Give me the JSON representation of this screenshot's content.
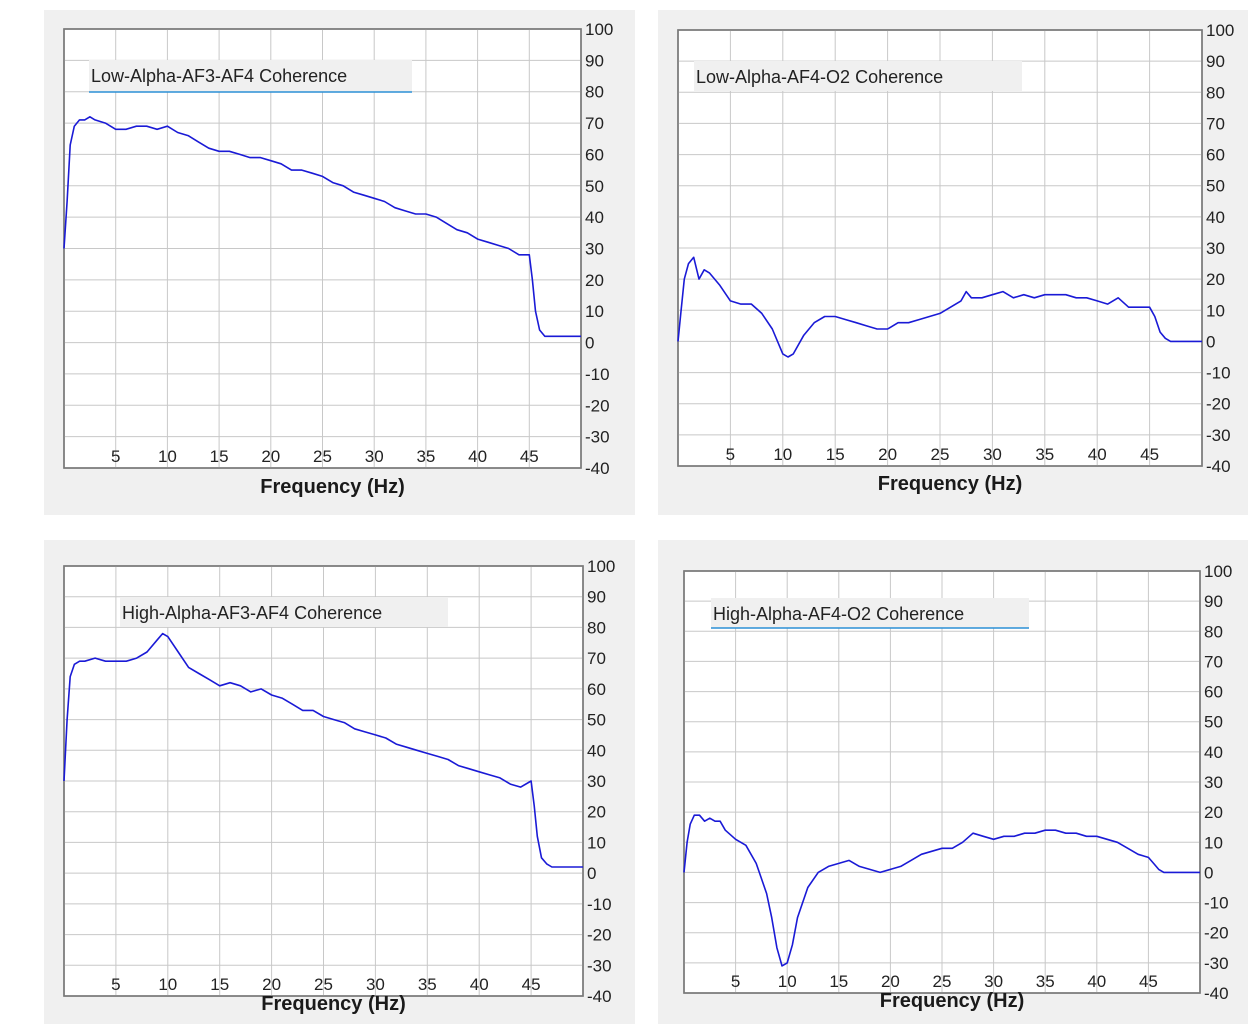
{
  "chart_data": [
    {
      "type": "line",
      "title": "Low-Alpha-AF3-AF4 Coherence",
      "xlabel": "Frequency (Hz)",
      "ylabel": "",
      "xlim": [
        0,
        50
      ],
      "ylim": [
        -40,
        100
      ],
      "x_ticks": [
        5,
        10,
        15,
        20,
        25,
        30,
        35,
        40,
        45
      ],
      "y_ticks": [
        100,
        90,
        80,
        70,
        60,
        50,
        40,
        30,
        20,
        10,
        0,
        -10,
        -20,
        -30,
        -40
      ],
      "grid": true,
      "title_underline": true,
      "series": [
        {
          "color": "#1a1ad6",
          "x": [
            0,
            0.3,
            0.6,
            1,
            1.5,
            2,
            2.5,
            3,
            4,
            5,
            6,
            7,
            8,
            9,
            10,
            11,
            12,
            13,
            14,
            15,
            16,
            17,
            18,
            19,
            20,
            21,
            22,
            23,
            24,
            25,
            26,
            27,
            28,
            29,
            30,
            31,
            32,
            33,
            34,
            35,
            36,
            37,
            38,
            39,
            40,
            41,
            42,
            43,
            44,
            45,
            45.3,
            45.6,
            46,
            46.5,
            47,
            48,
            49,
            50
          ],
          "y": [
            30,
            45,
            63,
            69,
            71,
            71,
            72,
            71,
            70,
            68,
            68,
            69,
            69,
            68,
            69,
            67,
            66,
            64,
            62,
            61,
            61,
            60,
            59,
            59,
            58,
            57,
            55,
            55,
            54,
            53,
            51,
            50,
            48,
            47,
            46,
            45,
            43,
            42,
            41,
            41,
            40,
            38,
            36,
            35,
            33,
            32,
            31,
            30,
            28,
            28,
            20,
            10,
            4,
            2,
            2,
            2,
            2,
            2
          ]
        }
      ]
    },
    {
      "type": "line",
      "title": "Low-Alpha-AF4-O2 Coherence",
      "xlabel": "Frequency (Hz)",
      "ylabel": "",
      "xlim": [
        0,
        50
      ],
      "ylim": [
        -40,
        100
      ],
      "x_ticks": [
        5,
        10,
        15,
        20,
        25,
        30,
        35,
        40,
        45
      ],
      "y_ticks": [
        100,
        90,
        80,
        70,
        60,
        50,
        40,
        30,
        20,
        10,
        0,
        -10,
        -20,
        -30,
        -40
      ],
      "grid": true,
      "title_underline": false,
      "series": [
        {
          "color": "#1a1ad6",
          "x": [
            0,
            0.3,
            0.6,
            1,
            1.5,
            2,
            2.5,
            3,
            4,
            5,
            6,
            7,
            8,
            9,
            10,
            10.5,
            11,
            12,
            13,
            14,
            15,
            16,
            17,
            18,
            19,
            20,
            21,
            22,
            23,
            24,
            25,
            26,
            27,
            27.5,
            28,
            29,
            30,
            31,
            32,
            33,
            34,
            35,
            36,
            37,
            38,
            39,
            40,
            41,
            42,
            43,
            44,
            45,
            45.5,
            46,
            46.5,
            47,
            48,
            49,
            50
          ],
          "y": [
            0,
            10,
            20,
            25,
            27,
            20,
            23,
            22,
            18,
            13,
            12,
            12,
            9,
            4,
            -4,
            -5,
            -4,
            2,
            6,
            8,
            8,
            7,
            6,
            5,
            4,
            4,
            6,
            6,
            7,
            8,
            9,
            11,
            13,
            16,
            14,
            14,
            15,
            16,
            14,
            15,
            14,
            15,
            15,
            15,
            14,
            14,
            13,
            12,
            14,
            11,
            11,
            11,
            8,
            3,
            1,
            0,
            0,
            0,
            0
          ]
        }
      ]
    },
    {
      "type": "line",
      "title": "High-Alpha-AF3-AF4 Coherence",
      "xlabel": "Frequency (Hz)",
      "ylabel": "",
      "xlim": [
        0,
        50
      ],
      "ylim": [
        -40,
        100
      ],
      "x_ticks": [
        5,
        10,
        15,
        20,
        25,
        30,
        35,
        40,
        45
      ],
      "y_ticks": [
        100,
        90,
        80,
        70,
        60,
        50,
        40,
        30,
        20,
        10,
        0,
        -10,
        -20,
        -30,
        -40
      ],
      "grid": true,
      "title_underline": false,
      "series": [
        {
          "color": "#1a1ad6",
          "x": [
            0,
            0.3,
            0.6,
            1,
            1.5,
            2,
            3,
            4,
            5,
            6,
            7,
            8,
            9,
            9.5,
            10,
            11,
            12,
            13,
            14,
            15,
            16,
            17,
            18,
            19,
            20,
            21,
            22,
            23,
            24,
            25,
            26,
            27,
            28,
            29,
            30,
            31,
            32,
            33,
            34,
            35,
            36,
            37,
            38,
            39,
            40,
            41,
            42,
            43,
            44,
            45,
            45.3,
            45.6,
            46,
            46.5,
            47,
            48,
            49,
            50
          ],
          "y": [
            30,
            50,
            64,
            68,
            69,
            69,
            70,
            69,
            69,
            69,
            70,
            72,
            76,
            78,
            77,
            72,
            67,
            65,
            63,
            61,
            62,
            61,
            59,
            60,
            58,
            57,
            55,
            53,
            53,
            51,
            50,
            49,
            47,
            46,
            45,
            44,
            42,
            41,
            40,
            39,
            38,
            37,
            35,
            34,
            33,
            32,
            31,
            29,
            28,
            30,
            22,
            12,
            5,
            3,
            2,
            2,
            2,
            2
          ]
        }
      ]
    },
    {
      "type": "line",
      "title": "High-Alpha-AF4-O2 Coherence",
      "xlabel": "Frequency (Hz)",
      "ylabel": "",
      "xlim": [
        0,
        50
      ],
      "ylim": [
        -40,
        100
      ],
      "x_ticks": [
        5,
        10,
        15,
        20,
        25,
        30,
        35,
        40,
        45
      ],
      "y_ticks": [
        100,
        90,
        80,
        70,
        60,
        50,
        40,
        30,
        20,
        10,
        0,
        -10,
        -20,
        -30,
        -40
      ],
      "grid": true,
      "title_underline": true,
      "series": [
        {
          "color": "#1a1ad6",
          "x": [
            0,
            0.3,
            0.6,
            1,
            1.5,
            2,
            2.5,
            3,
            3.5,
            4,
            5,
            6,
            7,
            8,
            8.5,
            9,
            9.5,
            10,
            10.5,
            11,
            12,
            13,
            14,
            15,
            16,
            17,
            18,
            19,
            20,
            21,
            22,
            23,
            24,
            25,
            26,
            27,
            28,
            29,
            30,
            31,
            32,
            33,
            34,
            35,
            36,
            37,
            38,
            39,
            40,
            41,
            42,
            43,
            44,
            45,
            45.5,
            46,
            46.5,
            47,
            48,
            49,
            50
          ],
          "y": [
            0,
            10,
            16,
            19,
            19,
            17,
            18,
            17,
            17,
            14,
            11,
            9,
            3,
            -7,
            -15,
            -25,
            -31,
            -30,
            -24,
            -15,
            -5,
            0,
            2,
            3,
            4,
            2,
            1,
            0,
            1,
            2,
            4,
            6,
            7,
            8,
            8,
            10,
            13,
            12,
            11,
            12,
            12,
            13,
            13,
            14,
            14,
            13,
            13,
            12,
            12,
            11,
            10,
            8,
            6,
            5,
            3,
            1,
            0,
            0,
            0,
            0,
            0
          ]
        }
      ]
    }
  ]
}
